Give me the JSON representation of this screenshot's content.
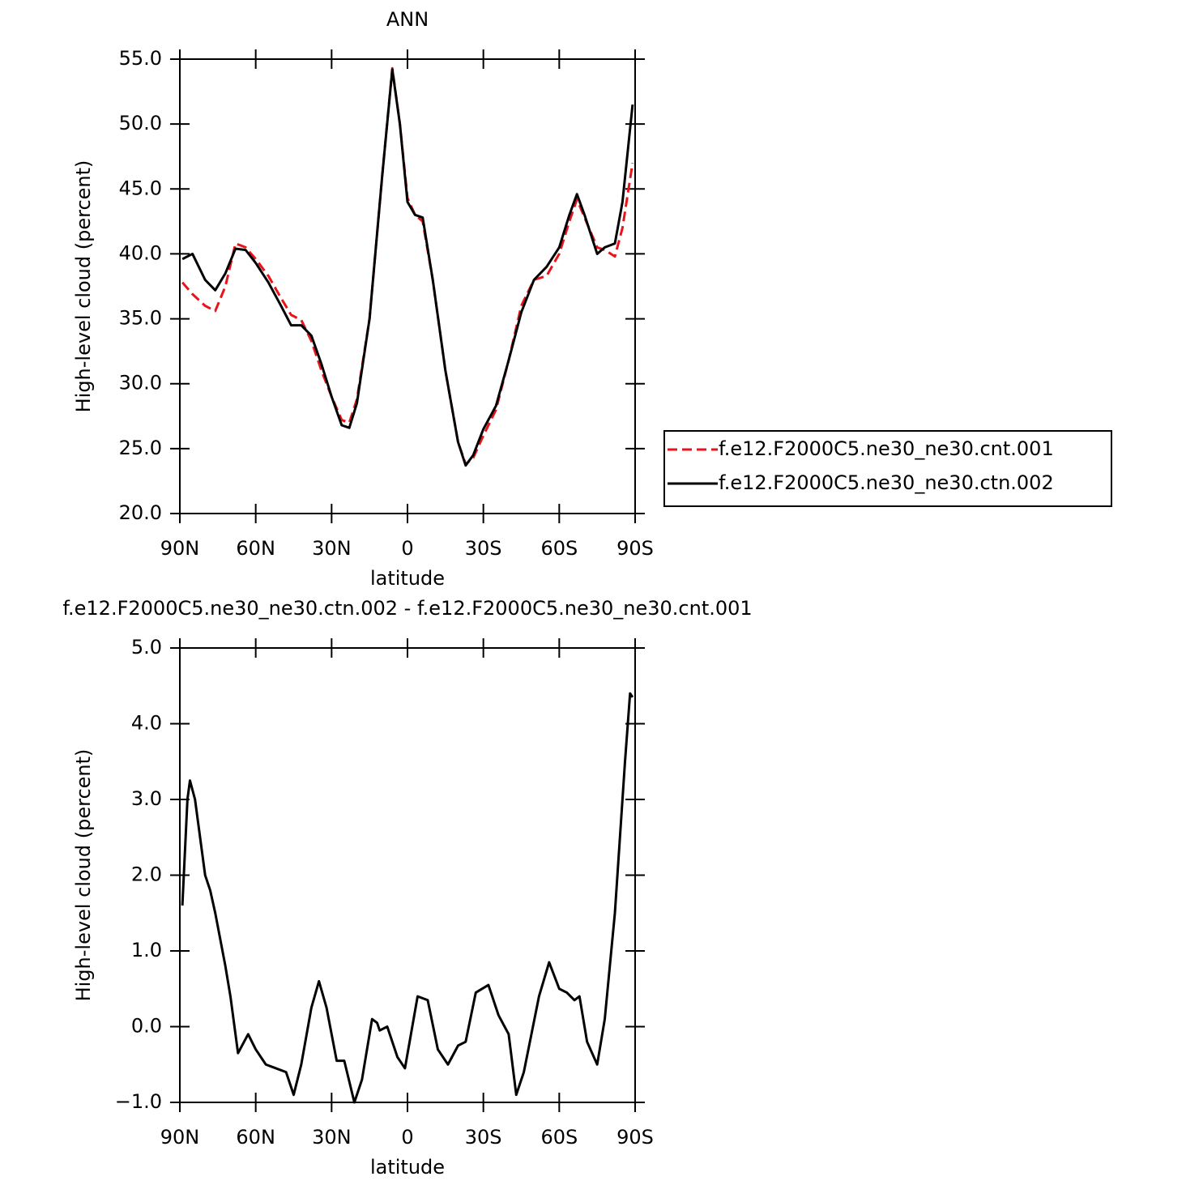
{
  "chart_data": [
    {
      "type": "line",
      "title": "ANN",
      "ylabel": "High-level cloud (percent)",
      "xlabel": "latitude",
      "xlim": [
        90,
        -90
      ],
      "xticks": [
        {
          "value": 90,
          "label": "90N"
        },
        {
          "value": 60,
          "label": "60N"
        },
        {
          "value": 30,
          "label": "30N"
        },
        0,
        {
          "value": -30,
          "label": "30S"
        },
        {
          "value": -60,
          "label": "60S"
        },
        {
          "value": -90,
          "label": "90S"
        }
      ],
      "ylim": [
        20,
        55
      ],
      "yticks": [
        {
          "value": 20,
          "label": "20.0"
        },
        {
          "value": 25,
          "label": "25.0"
        },
        {
          "value": 30,
          "label": "30.0"
        },
        {
          "value": 35,
          "label": "35.0"
        },
        {
          "value": 40,
          "label": "40.0"
        },
        {
          "value": 45,
          "label": "45.0"
        },
        {
          "value": 50,
          "label": "50.0"
        },
        {
          "value": 55,
          "label": "55.0"
        }
      ],
      "legend": "right",
      "x": [
        89,
        85,
        80,
        76,
        72,
        68,
        64,
        60,
        55,
        50,
        46,
        42,
        38,
        34,
        30,
        26,
        23,
        20,
        15,
        10,
        6,
        3,
        0,
        -3,
        -6,
        -10,
        -15,
        -20,
        -23,
        -26,
        -30,
        -35,
        -40,
        -45,
        -50,
        -55,
        -60,
        -64,
        -67,
        -70,
        -75,
        -78,
        -82,
        -85,
        -89
      ],
      "series": [
        {
          "name": "f.e12.F2000C5.ne30_ne30.cnt.001",
          "color": "#e8141b",
          "dashed": true,
          "values": [
            37.8,
            36.9,
            36.0,
            35.6,
            37.5,
            40.8,
            40.5,
            39.6,
            38.3,
            36.6,
            35.3,
            34.9,
            33.3,
            31.0,
            29.0,
            27.2,
            27.0,
            28.8,
            35.0,
            46.0,
            54.3,
            50.0,
            44.3,
            43.0,
            42.5,
            38.0,
            31.0,
            25.5,
            23.8,
            24.3,
            26.0,
            28.0,
            31.8,
            36.0,
            38.0,
            38.3,
            40.0,
            42.5,
            44.2,
            42.8,
            40.5,
            40.3,
            39.8,
            42.0,
            47.0
          ]
        },
        {
          "name": "f.e12.F2000C5.ne30_ne30.ctn.002",
          "color": "#000000",
          "dashed": false,
          "values": [
            39.6,
            40.0,
            38.0,
            37.2,
            38.5,
            40.4,
            40.3,
            39.3,
            37.8,
            36.0,
            34.5,
            34.5,
            33.7,
            31.5,
            29.0,
            26.8,
            26.6,
            28.5,
            35.0,
            46.0,
            54.2,
            50.0,
            44.0,
            43.0,
            42.8,
            38.0,
            31.0,
            25.5,
            23.7,
            24.5,
            26.5,
            28.3,
            31.8,
            35.5,
            38.0,
            39.0,
            40.5,
            43.0,
            44.6,
            43.0,
            40.0,
            40.5,
            40.8,
            44.0,
            51.5
          ]
        }
      ]
    },
    {
      "type": "line",
      "title": "f.e12.F2000C5.ne30_ne30.ctn.002 - f.e12.F2000C5.ne30_ne30.cnt.001",
      "ylabel": "High-level cloud (percent)",
      "xlabel": "latitude",
      "xlim": [
        90,
        -90
      ],
      "xticks": [
        {
          "value": 90,
          "label": "90N"
        },
        {
          "value": 60,
          "label": "60N"
        },
        {
          "value": 30,
          "label": "30N"
        },
        0,
        {
          "value": -30,
          "label": "30S"
        },
        {
          "value": -60,
          "label": "60S"
        },
        {
          "value": -90,
          "label": "90S"
        }
      ],
      "ylim": [
        -1,
        5
      ],
      "yticks": [
        {
          "value": -1,
          "label": "−1.0"
        },
        {
          "value": 0,
          "label": "0.0"
        },
        {
          "value": 1,
          "label": "1.0"
        },
        {
          "value": 2,
          "label": "2.0"
        },
        {
          "value": 3,
          "label": "3.0"
        },
        {
          "value": 4,
          "label": "4.0"
        },
        {
          "value": 5,
          "label": "5.0"
        }
      ],
      "x": [
        89,
        87,
        86,
        84,
        80,
        78,
        76,
        72,
        70,
        67,
        63,
        60,
        56,
        52,
        48,
        45,
        42,
        38,
        35,
        32,
        28,
        25,
        21,
        18,
        14,
        12,
        11,
        8,
        4,
        1,
        -4,
        -8,
        -12,
        -16,
        -20,
        -23,
        -27,
        -32,
        -36,
        -40,
        -43,
        -46,
        -52,
        -56,
        -60,
        -63,
        -66,
        -68,
        -71,
        -75,
        -78,
        -82,
        -86,
        -88,
        -89
      ],
      "series": [
        {
          "color": "#000000",
          "values": [
            1.6,
            3.0,
            3.25,
            3.0,
            2.0,
            1.8,
            1.5,
            0.8,
            0.4,
            -0.35,
            -0.1,
            -0.3,
            -0.5,
            -0.55,
            -0.6,
            -0.9,
            -0.5,
            0.25,
            0.6,
            0.25,
            -0.45,
            -0.45,
            -1.0,
            -0.7,
            0.1,
            0.05,
            -0.05,
            0.0,
            -0.4,
            -0.55,
            0.4,
            0.35,
            -0.3,
            -0.5,
            -0.25,
            -0.2,
            0.45,
            0.55,
            0.15,
            -0.1,
            -0.9,
            -0.6,
            0.4,
            0.85,
            0.5,
            0.45,
            0.35,
            0.4,
            -0.2,
            -0.5,
            0.1,
            1.5,
            3.5,
            4.4,
            4.35
          ]
        }
      ]
    }
  ]
}
